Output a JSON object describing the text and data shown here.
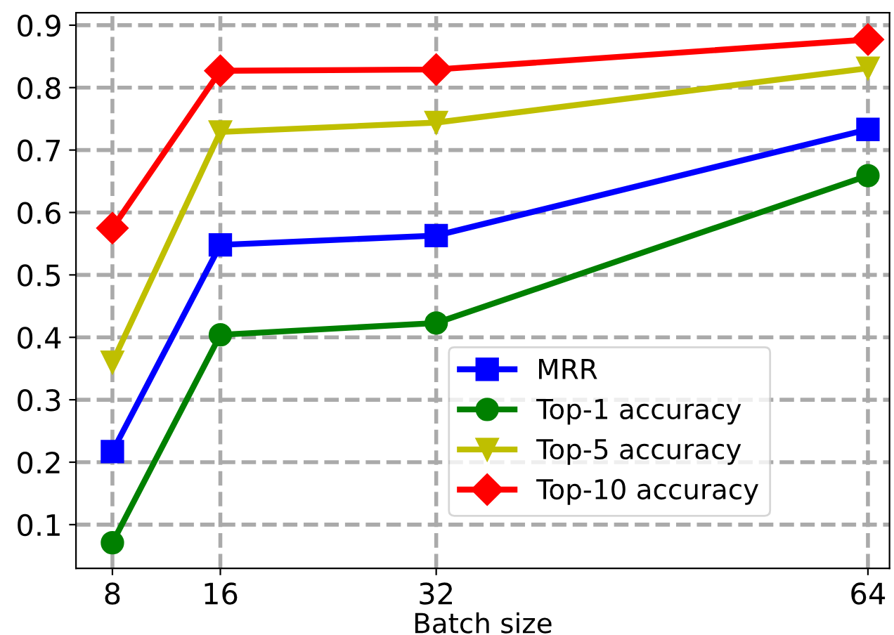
{
  "chart_data": {
    "type": "line",
    "xlabel": "Batch size",
    "x": [
      8,
      16,
      32,
      64
    ],
    "series": [
      {
        "name": "MRR",
        "color": "#0000ff",
        "marker": "square",
        "values": [
          0.217,
          0.548,
          0.563,
          0.733
        ]
      },
      {
        "name": "Top-1 accuracy",
        "color": "#008000",
        "marker": "circle",
        "values": [
          0.071,
          0.404,
          0.423,
          0.659
        ]
      },
      {
        "name": "Top-5 accuracy",
        "color": "#bfbf00",
        "marker": "triangle",
        "values": [
          0.36,
          0.729,
          0.744,
          0.831
        ]
      },
      {
        "name": "Top-10 accuracy",
        "color": "#ff0000",
        "marker": "diamond",
        "values": [
          0.575,
          0.827,
          0.829,
          0.877
        ]
      }
    ],
    "xlim": [
      5.3,
      65.6
    ],
    "xticks": [
      8,
      16,
      32,
      64
    ],
    "ylim": [
      0.03,
      0.92
    ],
    "yticks": [
      0.1,
      0.2,
      0.3,
      0.4,
      0.5,
      0.6,
      0.7,
      0.8,
      0.9
    ],
    "grid": true,
    "legend": "bottom right",
    "line_style": "solid"
  }
}
